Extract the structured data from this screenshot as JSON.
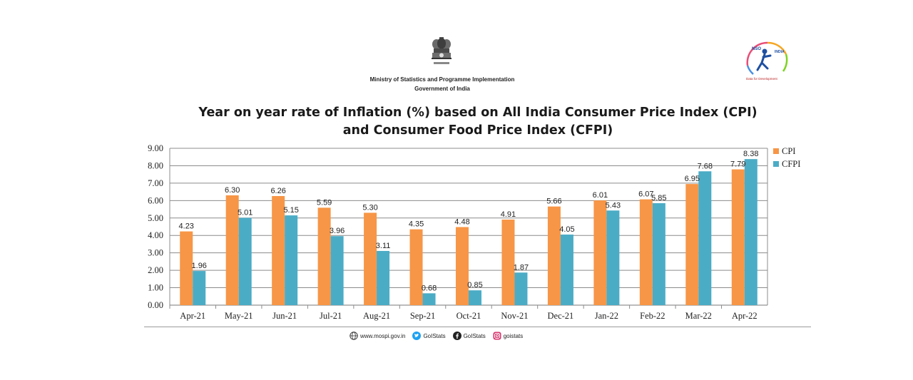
{
  "header": {
    "emblem_text": "सत्यमेव जयते",
    "ministry": "Ministry of Statistics and Programme Implementation",
    "government": "Government of India",
    "logo_title": "NSO",
    "logo_country": "INDIA",
    "logo_tagline": "Data for Development"
  },
  "chart_data": {
    "type": "bar",
    "title_line1": "Year on year rate of Inflation (%) based on All India Consumer Price Index (CPI)",
    "title_line2": "and Consumer Food Price Index (CFPI)",
    "categories": [
      "Apr-21",
      "May-21",
      "Jun-21",
      "Jul-21",
      "Aug-21",
      "Sep-21",
      "Oct-21",
      "Nov-21",
      "Dec-21",
      "Jan-22",
      "Feb-22",
      "Mar-22",
      "Apr-22"
    ],
    "series": [
      {
        "name": "CPI",
        "color": "#f79646",
        "values": [
          4.23,
          6.3,
          6.26,
          5.59,
          5.3,
          4.35,
          4.48,
          4.91,
          5.66,
          6.01,
          6.07,
          6.95,
          7.79
        ],
        "labels": [
          "4.23",
          "6.30",
          "6.26",
          "5.59",
          "5.30",
          "4.35",
          "4.48",
          "4.91",
          "5.66",
          "6.01",
          "6.07",
          "6.95",
          "7.79"
        ]
      },
      {
        "name": "CFPI",
        "color": "#4bacc6",
        "values": [
          1.96,
          5.01,
          5.15,
          3.96,
          3.11,
          0.68,
          0.85,
          1.87,
          4.05,
          5.43,
          5.85,
          7.68,
          8.38
        ],
        "labels": [
          "1.96",
          "5.01",
          "5.15",
          "3.96",
          "3.11",
          "0.68",
          "0.85",
          "1.87",
          "4.05",
          "5.43",
          "5.85",
          "7.68",
          "8.38"
        ]
      }
    ],
    "ylim": [
      0,
      9
    ],
    "yticks": [
      "0.00",
      "1.00",
      "2.00",
      "3.00",
      "4.00",
      "5.00",
      "6.00",
      "7.00",
      "8.00",
      "9.00"
    ],
    "xlabel": "",
    "ylabel": "",
    "grid": true,
    "legend": "top-right"
  },
  "footer": {
    "website": "www.mospi.gov.in",
    "twitter": "GoIStats",
    "facebook": "GoIStats",
    "instagram": "goistats"
  }
}
